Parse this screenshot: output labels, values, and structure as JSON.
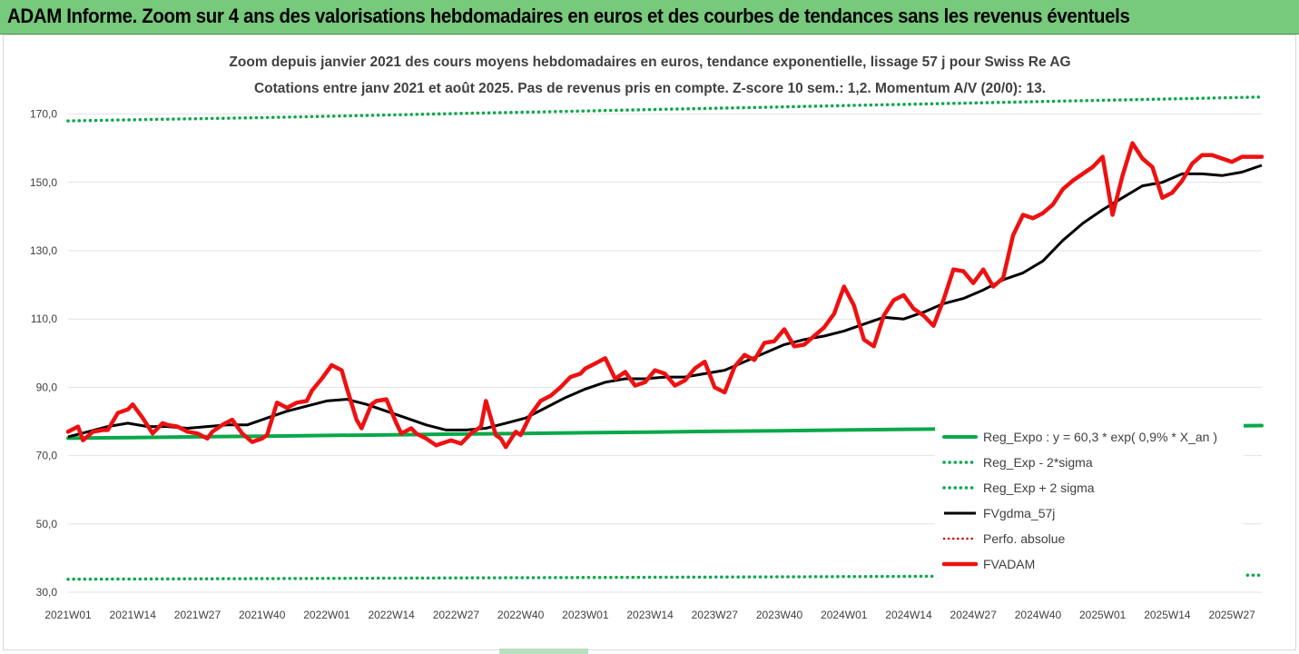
{
  "banner": {
    "title": "ADAM Informe. Zoom sur 4 ans des valorisations hebdomadaires en euros et des courbes de tendances sans les revenus éventuels"
  },
  "colors": {
    "banner_bg": "#77c97c",
    "reg_expo": "#0aa84a",
    "fvgdma": "#000000",
    "fvadam": "#ee1111",
    "perfo": "#cc0000"
  },
  "chart_data": {
    "type": "line",
    "title": "Zoom depuis janvier 2021 des cours moyens hebdomadaires en euros, tendance exponentielle, lissage 57 j pour Swiss Re AG",
    "subtitle": "Cotations entre janv 2021 et août 2025. Pas de revenus pris en compte. Z-score 10 sem.: 1,2. Momentum A/V (20/0): 13.",
    "xlabel": "",
    "ylabel": "",
    "ylim": [
      30,
      180
    ],
    "yticks": [
      "30,0",
      "50,0",
      "70,0",
      "90,0",
      "110,0",
      "130,0",
      "150,0",
      "170,0"
    ],
    "xticks": [
      "2021W01",
      "2021W14",
      "2021W27",
      "2021W40",
      "2022W01",
      "2022W14",
      "2022W27",
      "2022W40",
      "2023W01",
      "2023W14",
      "2023W27",
      "2023W40",
      "2024W01",
      "2024W14",
      "2024W27",
      "2024W40",
      "2025W01",
      "2025W14",
      "2025W27"
    ],
    "grid": "horizontal",
    "legend_position": "bottom-right",
    "series": [
      {
        "name": "Reg_Expo : y = 60,3 * exp( 0,9% *  X_an )",
        "style": "solid-thick",
        "x": [
          0,
          13,
          26,
          39,
          52,
          65,
          78,
          91,
          104,
          117,
          130,
          143,
          156,
          169,
          182,
          195,
          208,
          221,
          234,
          240
        ],
        "values": [
          75.1,
          75.3,
          75.5,
          75.7,
          75.9,
          76.1,
          76.3,
          76.5,
          76.7,
          76.9,
          77.1,
          77.3,
          77.5,
          77.7,
          77.9,
          78.1,
          78.3,
          78.5,
          78.7,
          78.8
        ]
      },
      {
        "name": "Reg_Exp - 2*sigma",
        "style": "dotted",
        "x": [
          0,
          40,
          80,
          120,
          160,
          200,
          240
        ],
        "values": [
          33.8,
          34.0,
          34.2,
          34.4,
          34.6,
          34.8,
          35.0
        ]
      },
      {
        "name": "Reg_Exp + 2 sigma",
        "style": "dotted",
        "x": [
          0,
          20,
          40,
          60,
          80,
          100,
          120,
          140,
          160,
          180,
          200,
          220,
          240
        ],
        "values": [
          168.0,
          168.5,
          169.0,
          169.6,
          170.2,
          170.8,
          171.4,
          172.0,
          172.6,
          173.2,
          173.8,
          174.4,
          175.0
        ]
      },
      {
        "name": "FVgdma_57j",
        "style": "solid",
        "x": [
          0,
          4,
          8,
          12,
          16,
          20,
          24,
          28,
          32,
          36,
          40,
          44,
          48,
          52,
          56,
          60,
          64,
          68,
          72,
          76,
          80,
          84,
          88,
          92,
          96,
          100,
          104,
          108,
          112,
          116,
          120,
          124,
          128,
          132,
          136,
          140,
          144,
          148,
          152,
          156,
          160,
          164,
          168,
          172,
          176,
          180,
          184,
          188,
          192,
          196,
          200,
          204,
          208,
          212,
          216,
          220,
          224,
          228,
          232,
          236,
          240
        ],
        "values": [
          75.5,
          77,
          78.5,
          79.5,
          78.5,
          78.5,
          78,
          78.5,
          79,
          79,
          81,
          83,
          84.5,
          86,
          86.5,
          85,
          83,
          81,
          79,
          77.5,
          77.5,
          78,
          79.5,
          81,
          84,
          87,
          89.5,
          91.5,
          92.5,
          92.5,
          93,
          93,
          94,
          95,
          97.5,
          100,
          102.5,
          104,
          105,
          106.5,
          108.5,
          110.5,
          110,
          112,
          114.5,
          116,
          118.5,
          121.5,
          123.5,
          127,
          133,
          138,
          142,
          145.5,
          149,
          150,
          152.5,
          152.5,
          152,
          153,
          155
        ]
      },
      {
        "name": "Perfo. absolue",
        "style": "dotted-red",
        "x": [],
        "values": []
      },
      {
        "name": "FVADAM",
        "style": "solid-thick",
        "x": [
          0,
          2,
          3,
          5,
          7,
          8,
          10,
          12,
          13,
          15,
          17,
          19,
          20,
          22,
          24,
          26,
          28,
          29,
          31,
          33,
          35,
          37,
          39,
          40,
          42,
          44,
          46,
          48,
          49,
          51,
          53,
          55,
          56,
          58,
          59,
          61,
          62,
          64,
          66,
          67,
          69,
          70,
          72,
          74,
          75,
          77,
          79,
          81,
          83,
          84,
          86,
          87,
          88,
          90,
          91,
          93,
          95,
          97,
          99,
          101,
          103,
          104,
          106,
          108,
          110,
          112,
          114,
          116,
          118,
          120,
          122,
          124,
          126,
          128,
          130,
          132,
          134,
          136,
          138,
          140,
          142,
          144,
          146,
          148,
          150,
          152,
          154,
          156,
          158,
          160,
          162,
          164,
          166,
          168,
          170,
          172,
          174,
          176,
          178,
          180,
          182,
          184,
          186,
          188,
          190,
          192,
          194,
          196,
          198,
          200,
          202,
          204,
          206,
          208,
          210,
          212,
          214,
          216,
          218,
          220,
          222,
          224,
          226,
          228,
          230,
          232,
          234,
          236,
          238,
          240
        ],
        "values": [
          77,
          78.5,
          74.5,
          77,
          77.5,
          77.5,
          82.5,
          83.5,
          85,
          81,
          76.5,
          79.5,
          79,
          78.5,
          77,
          76.5,
          75,
          77,
          79,
          80.5,
          76.5,
          74,
          75,
          76,
          85.5,
          84,
          85.5,
          86,
          89,
          92.5,
          96.5,
          95,
          90,
          80.5,
          78,
          85,
          86,
          86.5,
          79.5,
          76.5,
          78,
          76.5,
          75,
          73,
          73.5,
          74.5,
          73.5,
          76.5,
          78.5,
          86,
          76,
          75,
          72.5,
          77,
          76,
          82,
          86,
          87.5,
          90,
          93,
          94,
          95.5,
          97,
          98.5,
          92.5,
          94.5,
          90.5,
          91.5,
          95,
          94,
          90.5,
          92,
          95.5,
          97.5,
          90,
          88.5,
          96,
          99.5,
          98,
          103,
          103.5,
          107,
          102,
          102.5,
          105,
          107.5,
          111.5,
          119.5,
          114,
          104,
          102,
          111,
          115.5,
          117,
          113,
          111,
          108,
          115.5,
          124.5,
          124,
          120.5,
          124.5,
          119.5,
          122,
          134.5,
          140.5,
          139.5,
          141,
          143.5,
          148,
          150.5,
          152.5,
          154.5,
          157.5,
          140.5,
          152,
          161.5,
          157,
          154.5,
          145.5,
          147,
          150.5,
          155.5,
          158,
          158,
          157,
          156,
          157.5,
          157.5,
          157.5
        ]
      }
    ]
  }
}
